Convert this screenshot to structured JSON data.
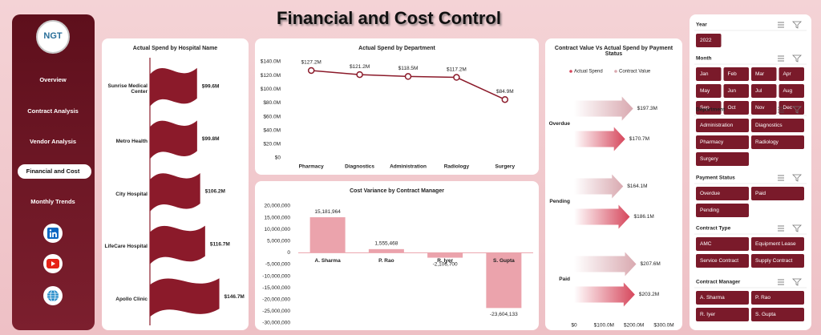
{
  "header": {
    "title": "Financial and Cost Control"
  },
  "nav": {
    "logo": "NGT",
    "items": [
      "Overview",
      "Contract Analysis",
      "Vendor Analysis",
      "Financial and Cost",
      "Monthly Trends"
    ]
  },
  "chart_data": [
    {
      "type": "pictorial-bar",
      "title": "Actual Spend by Hospital Name",
      "categories": [
        "Sunrise Medical Center",
        "Metro Health",
        "City Hospital",
        "LifeCare Hospital",
        "Apollo Clinic"
      ],
      "values": [
        99.6,
        99.8,
        106.2,
        116.7,
        146.7
      ],
      "value_labels": [
        "$99.6M",
        "$99.8M",
        "$106.2M",
        "$116.7M",
        "$146.7M"
      ],
      "color": "#8b1a2a"
    },
    {
      "type": "line",
      "title": "Actual Spend by Department",
      "categories": [
        "Pharmacy",
        "Diagnostics",
        "Administration",
        "Radiology",
        "Surgery"
      ],
      "values": [
        127.2,
        121.2,
        118.5,
        117.2,
        84.9
      ],
      "value_labels": [
        "$127.2M",
        "$121.2M",
        "$118.5M",
        "$117.2M",
        "$84.9M"
      ],
      "color": "#8b1a2a",
      "ylim": [
        0,
        140
      ],
      "yticks": [
        {
          "value": 0,
          "label": "$0"
        },
        {
          "value": 20,
          "label": "$20.0M"
        },
        {
          "value": 40,
          "label": "$40.0M"
        },
        {
          "value": 60,
          "label": "$60.0M"
        },
        {
          "value": 80,
          "label": "$80.0M"
        },
        {
          "value": 100,
          "label": "$100.0M"
        },
        {
          "value": 120,
          "label": "$120.0M"
        },
        {
          "value": 140,
          "label": "$140.0M"
        }
      ]
    },
    {
      "type": "bar",
      "title": "Cost Variance by Contract Manager",
      "categories": [
        "A. Sharma",
        "P. Rao",
        "R. Iyer",
        "S. Gupta"
      ],
      "values": [
        15181964,
        1555468,
        -2106700,
        -23604133
      ],
      "value_labels": [
        "15,181,964",
        "1,555,468",
        "-2,106,700",
        "-23,604,133"
      ],
      "color": "#eba3ac",
      "ylim": [
        -30000000,
        20000000
      ],
      "yticks": [
        {
          "value": 20000000,
          "label": "20,000,000"
        },
        {
          "value": 15000000,
          "label": "15,000,000"
        },
        {
          "value": 10000000,
          "label": "10,000,000"
        },
        {
          "value": 5000000,
          "label": "5,000,000"
        },
        0,
        {
          "value": -5000000,
          "label": "-5,000,000"
        },
        {
          "value": -10000000,
          "label": "-10,000,000"
        },
        {
          "value": -15000000,
          "label": "-15,000,000"
        },
        {
          "value": -20000000,
          "label": "-20,000,000"
        },
        {
          "value": -25000000,
          "label": "-25,000,000"
        },
        {
          "value": -30000000,
          "label": "-30,000,000"
        }
      ]
    },
    {
      "type": "arrow-bar",
      "title": "Contract Value Vs Actual Spend by Payment Status",
      "categories": [
        "Overdue",
        "Pending",
        "Paid"
      ],
      "series": [
        {
          "name": "Actual Spend",
          "color": "#d6475c",
          "values": [
            170.7,
            186.1,
            203.2
          ],
          "value_labels": [
            "$170.7M",
            "$186.1M",
            "$203.2M"
          ]
        },
        {
          "name": "Contract Value",
          "color": "#d9a9b0",
          "values": [
            197.3,
            164.1,
            207.6
          ],
          "value_labels": [
            "$197.3M",
            "$164.1M",
            "$207.6M"
          ]
        }
      ],
      "xlim": [
        0,
        300
      ],
      "xticks": [
        {
          "value": 0,
          "label": "$0"
        },
        {
          "value": 100,
          "label": "$100.0M"
        },
        {
          "value": 200,
          "label": "$200.0M"
        },
        {
          "value": 300,
          "label": "$300.0M"
        }
      ],
      "legend": "top"
    }
  ],
  "slicers": [
    {
      "title": "Year",
      "items": [
        "2022"
      ]
    },
    {
      "title": "Month",
      "items": [
        "Jan",
        "Feb",
        "Mar",
        "Apr",
        "May",
        "Jun",
        "Jul",
        "Aug",
        "Sep",
        "Oct",
        "Nov",
        "Dec"
      ]
    },
    {
      "title": "Department",
      "items": [
        "Administration",
        "Diagnostics",
        "Pharmacy",
        "Radiology",
        "Surgery"
      ]
    },
    {
      "title": "Payment Status",
      "items": [
        "Overdue",
        "Paid",
        "Pending"
      ]
    },
    {
      "title": "Contract Type",
      "items": [
        "AMC",
        "Equipment Lease",
        "Service Contract",
        "Supply Contract"
      ]
    },
    {
      "title": "Contract Manager",
      "items": [
        "A. Sharma",
        "P. Rao",
        "R. Iyer",
        "S. Gupta"
      ]
    }
  ]
}
